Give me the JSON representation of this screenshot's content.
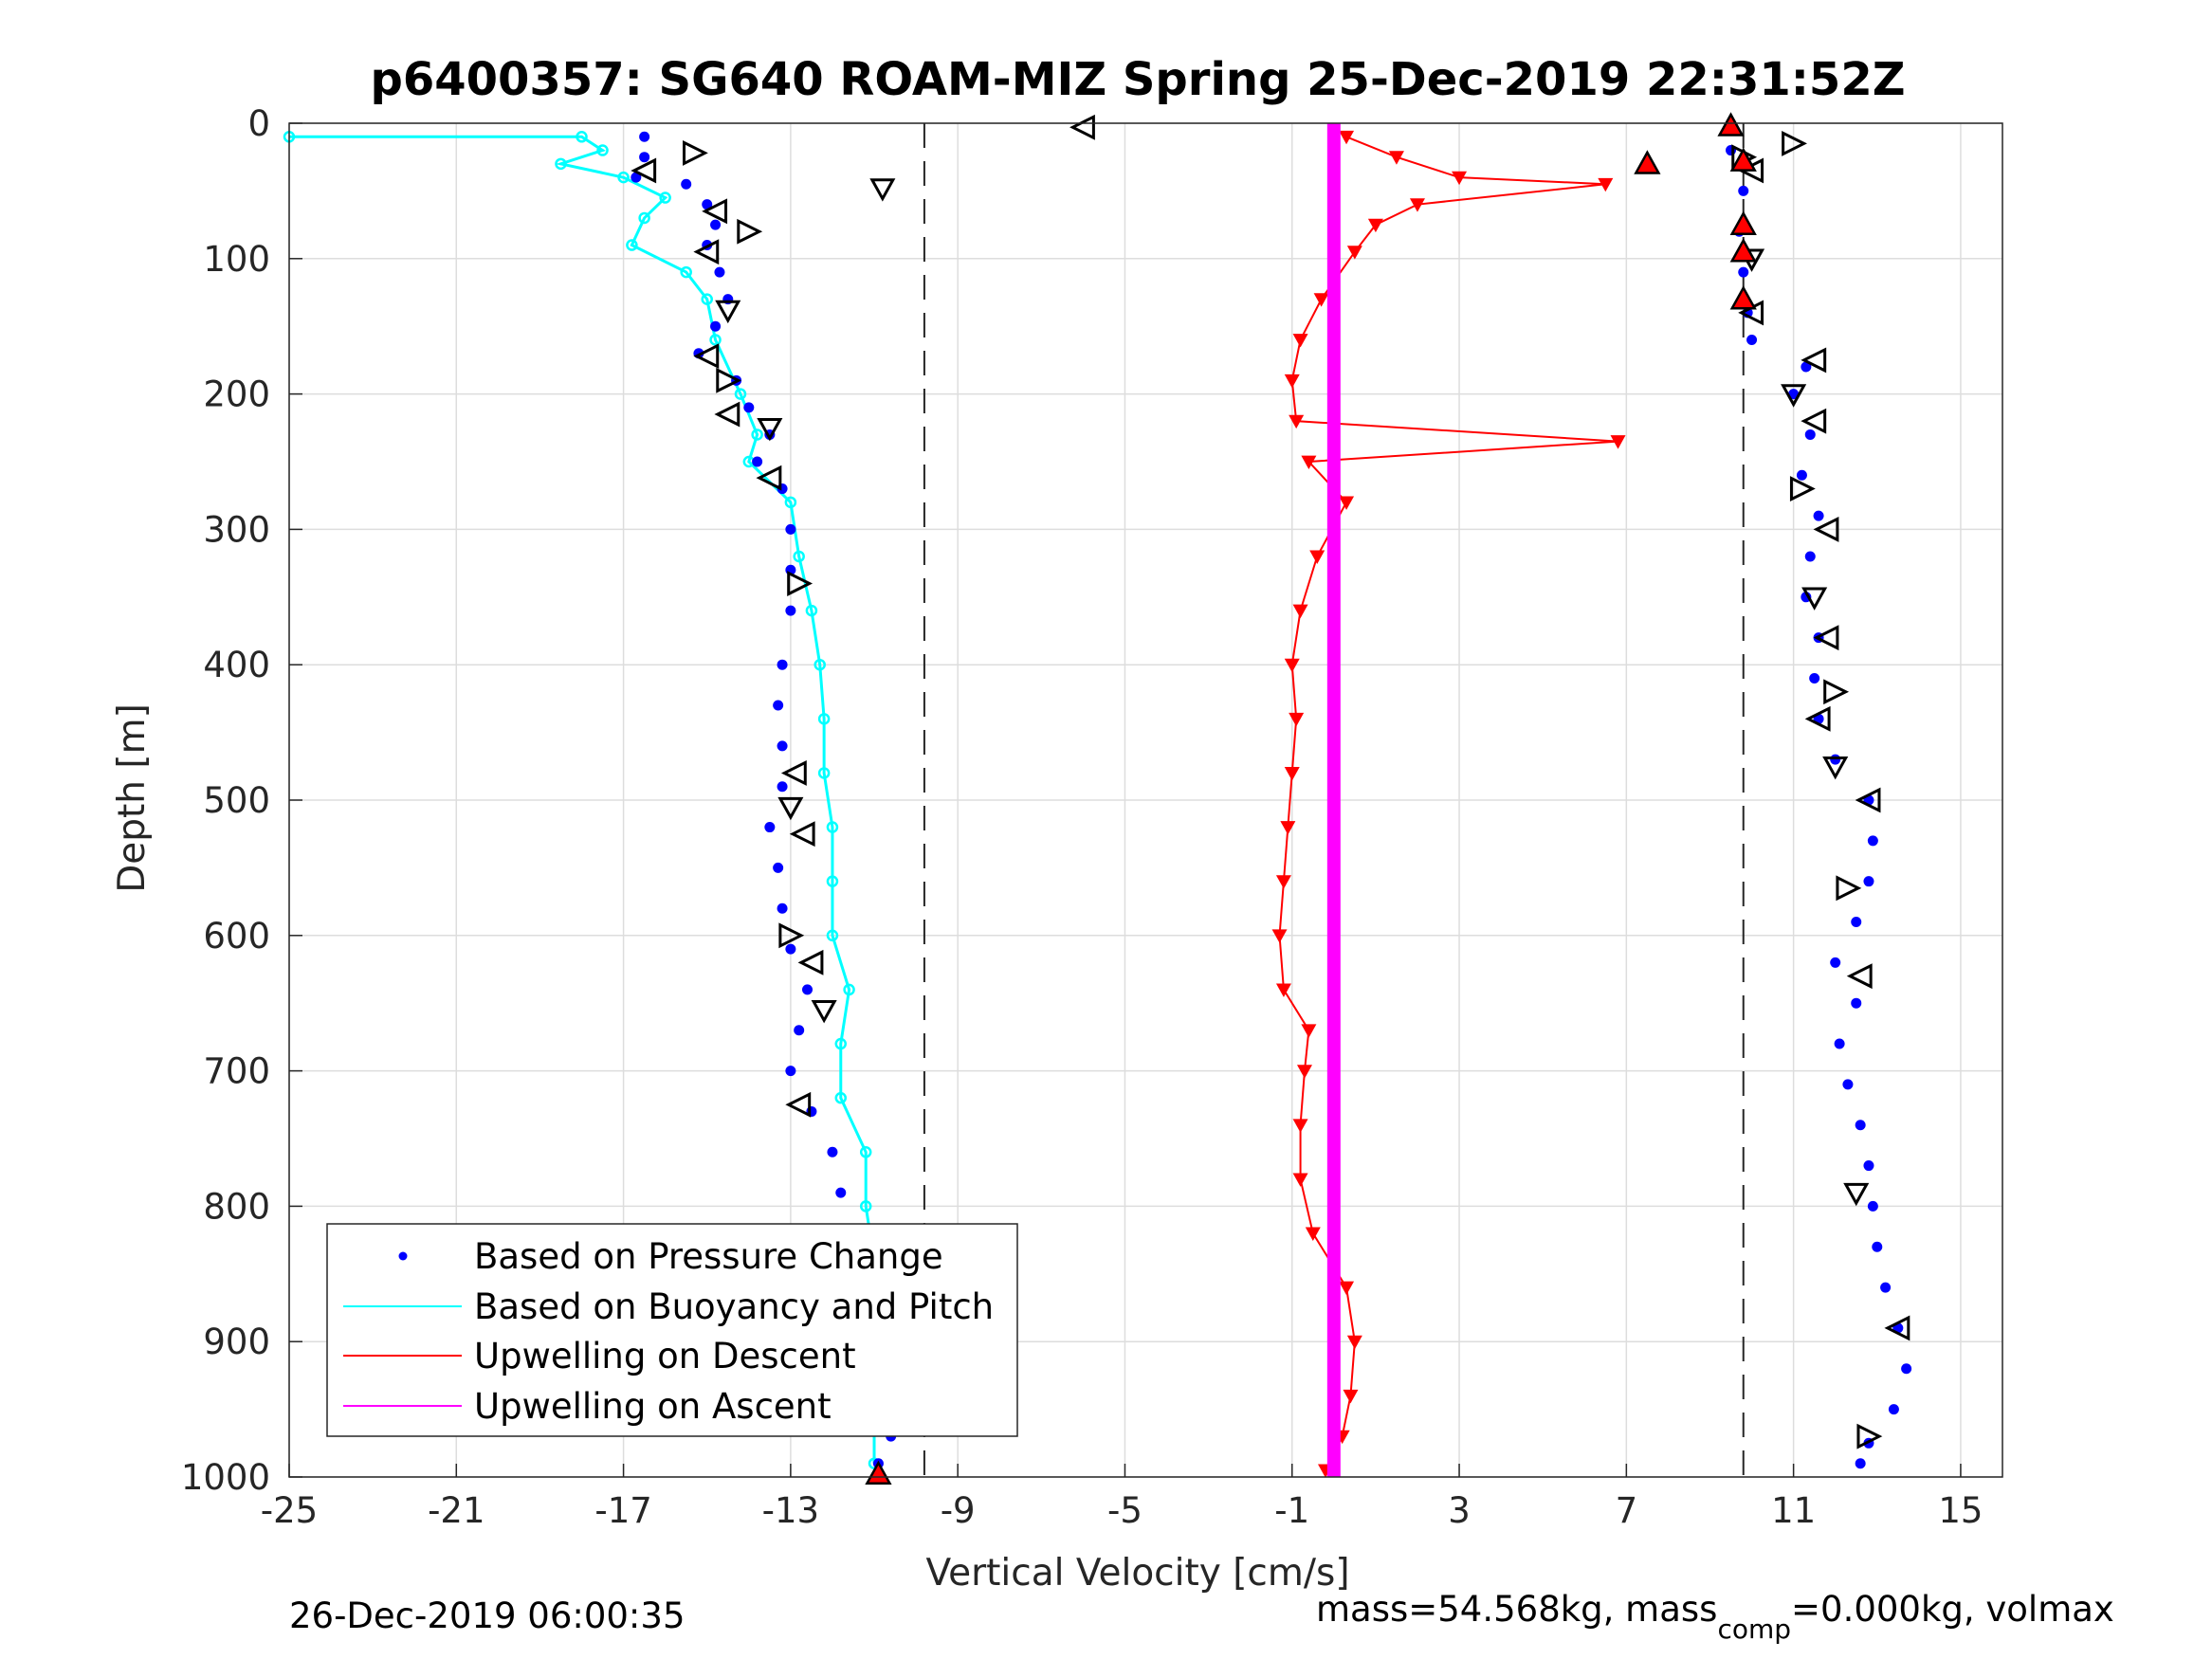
{
  "chart_data": {
    "type": "scatter",
    "title": "p6400357: SG640 ROAM-MIZ Spring 25-Dec-2019 22:31:52Z",
    "xlabel": "Vertical Velocity [cm/s]",
    "ylabel": "Depth [m]",
    "xlim": [
      -25,
      16
    ],
    "ylim": [
      0,
      1000
    ],
    "y_reversed": true,
    "grid": true,
    "legend_position": "bottom-left",
    "xticks": [
      "-25",
      "-21",
      "-17",
      "-13",
      "-9",
      "-5",
      "-1",
      "3",
      "7",
      "11",
      "15"
    ],
    "yticks": [
      "0",
      "100",
      "200",
      "300",
      "400",
      "500",
      "600",
      "700",
      "800",
      "900",
      "1000"
    ],
    "reference_lines_x": [
      -9.8,
      9.8
    ],
    "series": [
      {
        "name": "Based on Pressure Change",
        "color": "#0000ff",
        "marker": "dot",
        "segments": [
          {
            "phase": "descent",
            "points": [
              [
                -16.5,
                10
              ],
              [
                -16.5,
                25
              ],
              [
                -16.7,
                40
              ],
              [
                -15.5,
                45
              ],
              [
                -15.0,
                60
              ],
              [
                -14.8,
                75
              ],
              [
                -15.0,
                90
              ],
              [
                -14.7,
                110
              ],
              [
                -14.5,
                130
              ],
              [
                -14.8,
                150
              ],
              [
                -15.2,
                170
              ],
              [
                -14.3,
                190
              ],
              [
                -14.0,
                210
              ],
              [
                -13.5,
                230
              ],
              [
                -13.8,
                250
              ],
              [
                -13.2,
                270
              ],
              [
                -13.0,
                300
              ],
              [
                -13.0,
                330
              ],
              [
                -13.0,
                360
              ],
              [
                -13.2,
                400
              ],
              [
                -13.3,
                430
              ],
              [
                -13.2,
                460
              ],
              [
                -13.2,
                490
              ],
              [
                -13.5,
                520
              ],
              [
                -13.3,
                550
              ],
              [
                -13.2,
                580
              ],
              [
                -13.0,
                610
              ],
              [
                -12.6,
                640
              ],
              [
                -12.8,
                670
              ],
              [
                -13.0,
                700
              ],
              [
                -12.5,
                730
              ],
              [
                -12.0,
                760
              ],
              [
                -11.8,
                790
              ],
              [
                -11.6,
                820
              ],
              [
                -11.3,
                850
              ],
              [
                -11.0,
                880
              ],
              [
                -10.7,
                910
              ],
              [
                -10.5,
                940
              ],
              [
                -10.6,
                970
              ],
              [
                -10.9,
                990
              ]
            ]
          },
          {
            "phase": "ascent",
            "points": [
              [
                9.5,
                20
              ],
              [
                9.8,
                50
              ],
              [
                9.7,
                80
              ],
              [
                9.8,
                110
              ],
              [
                9.9,
                140
              ],
              [
                10.0,
                160
              ],
              [
                11.3,
                180
              ],
              [
                11.0,
                200
              ],
              [
                11.4,
                230
              ],
              [
                11.2,
                260
              ],
              [
                11.6,
                290
              ],
              [
                11.4,
                320
              ],
              [
                11.3,
                350
              ],
              [
                11.6,
                380
              ],
              [
                11.5,
                410
              ],
              [
                11.6,
                440
              ],
              [
                12.0,
                470
              ],
              [
                12.8,
                500
              ],
              [
                12.9,
                530
              ],
              [
                12.8,
                560
              ],
              [
                12.5,
                590
              ],
              [
                12.0,
                620
              ],
              [
                12.5,
                650
              ],
              [
                12.1,
                680
              ],
              [
                12.3,
                710
              ],
              [
                12.6,
                740
              ],
              [
                12.8,
                770
              ],
              [
                12.9,
                800
              ],
              [
                13.0,
                830
              ],
              [
                13.2,
                860
              ],
              [
                13.5,
                890
              ],
              [
                13.7,
                920
              ],
              [
                13.4,
                950
              ],
              [
                12.8,
                975
              ],
              [
                12.6,
                990
              ]
            ]
          }
        ]
      },
      {
        "name": "Based on Buoyancy and Pitch",
        "color": "#00ffff",
        "marker": "circle-line",
        "points": [
          [
            -25,
            10
          ],
          [
            -18,
            10
          ],
          [
            -17.5,
            20
          ],
          [
            -18.5,
            30
          ],
          [
            -17.0,
            40
          ],
          [
            -16.0,
            55
          ],
          [
            -16.5,
            70
          ],
          [
            -16.8,
            90
          ],
          [
            -15.5,
            110
          ],
          [
            -15.0,
            130
          ],
          [
            -14.8,
            160
          ],
          [
            -14.2,
            200
          ],
          [
            -13.8,
            230
          ],
          [
            -14.0,
            250
          ],
          [
            -13.0,
            280
          ],
          [
            -12.8,
            320
          ],
          [
            -12.5,
            360
          ],
          [
            -12.3,
            400
          ],
          [
            -12.2,
            440
          ],
          [
            -12.2,
            480
          ],
          [
            -12.0,
            520
          ],
          [
            -12.0,
            560
          ],
          [
            -12.0,
            600
          ],
          [
            -11.6,
            640
          ],
          [
            -11.8,
            680
          ],
          [
            -11.8,
            720
          ],
          [
            -11.2,
            760
          ],
          [
            -11.2,
            800
          ],
          [
            -11.0,
            840
          ],
          [
            -11.0,
            880
          ],
          [
            -11.0,
            920
          ],
          [
            -11.0,
            960
          ],
          [
            -11.0,
            990
          ]
        ]
      },
      {
        "name": "Upwelling on Descent",
        "color": "#ff0000",
        "marker": "triangle-down",
        "points": [
          [
            0.3,
            10
          ],
          [
            1.5,
            25
          ],
          [
            3.0,
            40
          ],
          [
            6.5,
            45
          ],
          [
            2.0,
            60
          ],
          [
            1.0,
            75
          ],
          [
            0.5,
            95
          ],
          [
            -0.3,
            130
          ],
          [
            -0.8,
            160
          ],
          [
            -1.0,
            190
          ],
          [
            -0.9,
            220
          ],
          [
            6.8,
            235
          ],
          [
            -0.6,
            250
          ],
          [
            0.3,
            280
          ],
          [
            -0.4,
            320
          ],
          [
            -0.8,
            360
          ],
          [
            -1.0,
            400
          ],
          [
            -0.9,
            440
          ],
          [
            -1.0,
            480
          ],
          [
            -1.1,
            520
          ],
          [
            -1.2,
            560
          ],
          [
            -1.3,
            600
          ],
          [
            -1.2,
            640
          ],
          [
            -0.6,
            670
          ],
          [
            -0.7,
            700
          ],
          [
            -0.8,
            740
          ],
          [
            -0.8,
            780
          ],
          [
            -0.5,
            820
          ],
          [
            0.3,
            860
          ],
          [
            0.5,
            900
          ],
          [
            0.4,
            940
          ],
          [
            0.2,
            970
          ],
          [
            -0.2,
            995
          ]
        ]
      },
      {
        "name": "Upwelling on Ascent",
        "color": "#ff00ff",
        "marker": "triangle-up",
        "points": [
          [
            0,
            0
          ],
          [
            0,
            1000
          ]
        ]
      },
      {
        "name": "",
        "color": "#000000",
        "marker": "open-triangle",
        "points": [
          [
            -6,
            3
          ],
          [
            -15.3,
            22
          ],
          [
            -16.5,
            35
          ],
          [
            -10.8,
            48
          ],
          [
            -14.8,
            65
          ],
          [
            -14.0,
            80
          ],
          [
            -15.0,
            95
          ],
          [
            -14.5,
            138
          ],
          [
            -15.0,
            172
          ],
          [
            -14.5,
            190
          ],
          [
            -14.5,
            215
          ],
          [
            -13.5,
            225
          ],
          [
            -13.5,
            262
          ],
          [
            -12.8,
            340
          ],
          [
            -12.9,
            480
          ],
          [
            -13.0,
            505
          ],
          [
            -12.7,
            525
          ],
          [
            -13.0,
            600
          ],
          [
            -12.5,
            620
          ],
          [
            -12.2,
            655
          ],
          [
            -12.8,
            725
          ],
          [
            9.8,
            25
          ],
          [
            10.0,
            35
          ],
          [
            10.0,
            100
          ],
          [
            10.0,
            140
          ],
          [
            11.0,
            15
          ],
          [
            11.5,
            175
          ],
          [
            11.0,
            200
          ],
          [
            11.5,
            220
          ],
          [
            11.2,
            270
          ],
          [
            11.8,
            300
          ],
          [
            11.5,
            350
          ],
          [
            11.8,
            380
          ],
          [
            12.0,
            420
          ],
          [
            11.6,
            440
          ],
          [
            12.0,
            475
          ],
          [
            12.8,
            500
          ],
          [
            12.3,
            565
          ],
          [
            12.6,
            630
          ],
          [
            12.5,
            790
          ],
          [
            13.5,
            890
          ],
          [
            12.8,
            970
          ]
        ]
      },
      {
        "name": "",
        "color": "#ff0000",
        "marker": "filled-triangle-up",
        "points": [
          [
            9.5,
            2
          ],
          [
            7.5,
            30
          ],
          [
            9.8,
            28
          ],
          [
            9.8,
            75
          ],
          [
            9.8,
            95
          ],
          [
            9.8,
            130
          ],
          [
            -10.9,
            998
          ]
        ]
      }
    ]
  },
  "figure_text": {
    "timestamp": "26-Dec-2019 06:00:35",
    "footer_parts": [
      "mass=54.568kg, mass",
      "comp",
      "=0.000kg, volmax"
    ]
  }
}
